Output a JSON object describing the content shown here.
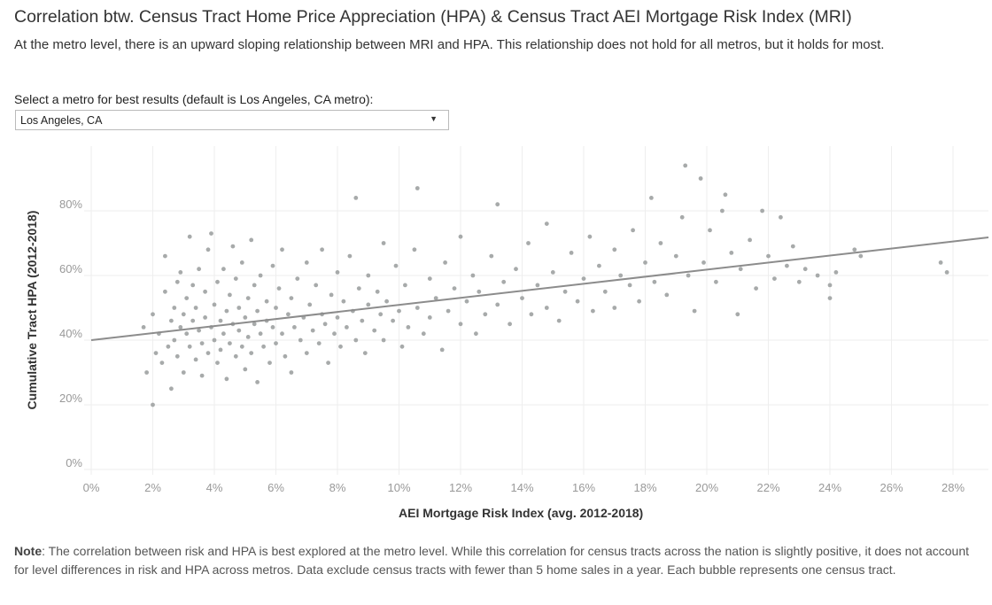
{
  "header": {
    "title": "Correlation btw. Census Tract Home Price Appreciation (HPA) & Census Tract AEI Mortgage Risk Index (MRI)",
    "subtitle": "At the metro level, there is an upward sloping relationship between MRI and HPA. This relationship does not hold for all metros, but it holds for most."
  },
  "filter": {
    "label": "Select a metro for best results (default is Los Angeles, CA metro):",
    "selected": "Los Angeles, CA",
    "icon": "caret-down-icon"
  },
  "note": {
    "label": "Note",
    "text": ": The correlation between risk and HPA is best explored at the metro level. While this correlation for census tracts across the nation is slightly positive, it does not account for level differences in risk and HPA across metros. Data exclude census tracts with fewer than 5 home sales in a year. Each bubble represents one census tract."
  },
  "chart_data": {
    "type": "scatter",
    "title": "Correlation btw. Census Tract Home Price Appreciation (HPA) & Census Tract AEI Mortgage Risk Index (MRI)",
    "xlabel": "AEI Mortgage Risk Index (avg. 2012-2018)",
    "ylabel": "Cumulative Tract HPA (2012-2018)",
    "xlim": [
      -0.3,
      29.2
    ],
    "ylim": [
      -3,
      100
    ],
    "x_ticks": [
      "0%",
      "2%",
      "4%",
      "6%",
      "8%",
      "10%",
      "12%",
      "14%",
      "16%",
      "18%",
      "20%",
      "22%",
      "24%",
      "26%",
      "28%"
    ],
    "x_tick_values": [
      0,
      2,
      4,
      6,
      8,
      10,
      12,
      14,
      16,
      18,
      20,
      22,
      24,
      26,
      28
    ],
    "y_ticks": [
      "0%",
      "20%",
      "40%",
      "60%",
      "80%"
    ],
    "y_tick_values": [
      0,
      20,
      40,
      60,
      80
    ],
    "grid": true,
    "point_color": "#a7aaaa",
    "trendline": {
      "color": "#8c8c8c",
      "intercept": 40,
      "slope": 1.09
    },
    "points": [
      [
        1.7,
        44
      ],
      [
        1.8,
        30
      ],
      [
        2.0,
        20
      ],
      [
        2.0,
        48
      ],
      [
        2.1,
        36
      ],
      [
        2.2,
        42
      ],
      [
        2.3,
        33
      ],
      [
        2.4,
        55
      ],
      [
        2.4,
        66
      ],
      [
        2.5,
        38
      ],
      [
        2.6,
        46
      ],
      [
        2.6,
        25
      ],
      [
        2.7,
        50
      ],
      [
        2.7,
        40
      ],
      [
        2.8,
        58
      ],
      [
        2.8,
        35
      ],
      [
        2.9,
        44
      ],
      [
        2.9,
        61
      ],
      [
        3.0,
        48
      ],
      [
        3.0,
        30
      ],
      [
        3.1,
        53
      ],
      [
        3.1,
        42
      ],
      [
        3.2,
        38
      ],
      [
        3.2,
        72
      ],
      [
        3.3,
        57
      ],
      [
        3.3,
        46
      ],
      [
        3.4,
        34
      ],
      [
        3.4,
        50
      ],
      [
        3.5,
        43
      ],
      [
        3.5,
        62
      ],
      [
        3.6,
        39
      ],
      [
        3.6,
        29
      ],
      [
        3.7,
        55
      ],
      [
        3.7,
        47
      ],
      [
        3.8,
        68
      ],
      [
        3.8,
        36
      ],
      [
        3.9,
        73
      ],
      [
        3.9,
        44
      ],
      [
        4.0,
        51
      ],
      [
        4.0,
        40
      ],
      [
        4.1,
        58
      ],
      [
        4.1,
        33
      ],
      [
        4.2,
        46
      ],
      [
        4.2,
        37
      ],
      [
        4.3,
        62
      ],
      [
        4.3,
        42
      ],
      [
        4.4,
        49
      ],
      [
        4.4,
        28
      ],
      [
        4.5,
        54
      ],
      [
        4.5,
        39
      ],
      [
        4.6,
        69
      ],
      [
        4.6,
        45
      ],
      [
        4.7,
        35
      ],
      [
        4.7,
        59
      ],
      [
        4.8,
        43
      ],
      [
        4.8,
        50
      ],
      [
        4.9,
        38
      ],
      [
        4.9,
        64
      ],
      [
        5.0,
        47
      ],
      [
        5.0,
        31
      ],
      [
        5.1,
        53
      ],
      [
        5.1,
        41
      ],
      [
        5.2,
        71
      ],
      [
        5.2,
        36
      ],
      [
        5.3,
        57
      ],
      [
        5.3,
        45
      ],
      [
        5.4,
        49
      ],
      [
        5.4,
        27
      ],
      [
        5.5,
        42
      ],
      [
        5.5,
        60
      ],
      [
        5.6,
        38
      ],
      [
        5.7,
        52
      ],
      [
        5.7,
        46
      ],
      [
        5.8,
        33
      ],
      [
        5.9,
        63
      ],
      [
        5.9,
        44
      ],
      [
        6.0,
        50
      ],
      [
        6.0,
        39
      ],
      [
        6.1,
        56
      ],
      [
        6.2,
        42
      ],
      [
        6.2,
        68
      ],
      [
        6.3,
        35
      ],
      [
        6.4,
        48
      ],
      [
        6.5,
        53
      ],
      [
        6.5,
        30
      ],
      [
        6.6,
        44
      ],
      [
        6.7,
        59
      ],
      [
        6.8,
        40
      ],
      [
        6.9,
        47
      ],
      [
        7.0,
        64
      ],
      [
        7.0,
        36
      ],
      [
        7.1,
        51
      ],
      [
        7.2,
        43
      ],
      [
        7.3,
        57
      ],
      [
        7.4,
        39
      ],
      [
        7.5,
        48
      ],
      [
        7.5,
        68
      ],
      [
        7.6,
        45
      ],
      [
        7.7,
        33
      ],
      [
        7.8,
        54
      ],
      [
        7.9,
        42
      ],
      [
        8.0,
        61
      ],
      [
        8.0,
        47
      ],
      [
        8.1,
        38
      ],
      [
        8.2,
        52
      ],
      [
        8.3,
        44
      ],
      [
        8.4,
        66
      ],
      [
        8.5,
        49
      ],
      [
        8.6,
        84
      ],
      [
        8.6,
        40
      ],
      [
        8.7,
        56
      ],
      [
        8.8,
        46
      ],
      [
        8.9,
        36
      ],
      [
        9.0,
        60
      ],
      [
        9.0,
        51
      ],
      [
        9.2,
        43
      ],
      [
        9.3,
        55
      ],
      [
        9.4,
        48
      ],
      [
        9.5,
        70
      ],
      [
        9.5,
        40
      ],
      [
        9.6,
        52
      ],
      [
        9.8,
        46
      ],
      [
        9.9,
        63
      ],
      [
        10.0,
        49
      ],
      [
        10.1,
        38
      ],
      [
        10.2,
        57
      ],
      [
        10.3,
        44
      ],
      [
        10.5,
        68
      ],
      [
        10.6,
        87
      ],
      [
        10.6,
        50
      ],
      [
        10.8,
        42
      ],
      [
        11.0,
        59
      ],
      [
        11.0,
        47
      ],
      [
        11.2,
        53
      ],
      [
        11.4,
        37
      ],
      [
        11.5,
        64
      ],
      [
        11.6,
        49
      ],
      [
        11.8,
        56
      ],
      [
        12.0,
        45
      ],
      [
        12.0,
        72
      ],
      [
        12.2,
        52
      ],
      [
        12.4,
        60
      ],
      [
        12.5,
        42
      ],
      [
        12.6,
        55
      ],
      [
        12.8,
        48
      ],
      [
        13.0,
        66
      ],
      [
        13.2,
        82
      ],
      [
        13.2,
        51
      ],
      [
        13.4,
        58
      ],
      [
        13.6,
        45
      ],
      [
        13.8,
        62
      ],
      [
        14.0,
        53
      ],
      [
        14.2,
        70
      ],
      [
        14.3,
        48
      ],
      [
        14.5,
        57
      ],
      [
        14.8,
        76
      ],
      [
        14.8,
        50
      ],
      [
        15.0,
        61
      ],
      [
        15.2,
        46
      ],
      [
        15.4,
        55
      ],
      [
        15.6,
        67
      ],
      [
        15.8,
        52
      ],
      [
        16.0,
        59
      ],
      [
        16.2,
        72
      ],
      [
        16.3,
        49
      ],
      [
        16.5,
        63
      ],
      [
        16.7,
        55
      ],
      [
        17.0,
        68
      ],
      [
        17.0,
        50
      ],
      [
        17.2,
        60
      ],
      [
        17.5,
        57
      ],
      [
        17.6,
        74
      ],
      [
        17.8,
        52
      ],
      [
        18.0,
        64
      ],
      [
        18.2,
        84
      ],
      [
        18.3,
        58
      ],
      [
        18.5,
        70
      ],
      [
        18.7,
        54
      ],
      [
        19.0,
        66
      ],
      [
        19.2,
        78
      ],
      [
        19.3,
        94
      ],
      [
        19.4,
        60
      ],
      [
        19.6,
        49
      ],
      [
        19.8,
        90
      ],
      [
        19.9,
        64
      ],
      [
        20.1,
        74
      ],
      [
        20.3,
        58
      ],
      [
        20.5,
        80
      ],
      [
        20.6,
        85
      ],
      [
        20.8,
        67
      ],
      [
        21.0,
        48
      ],
      [
        21.1,
        62
      ],
      [
        21.4,
        71
      ],
      [
        21.6,
        56
      ],
      [
        21.8,
        80
      ],
      [
        22.0,
        66
      ],
      [
        22.2,
        59
      ],
      [
        22.4,
        78
      ],
      [
        22.6,
        63
      ],
      [
        22.8,
        69
      ],
      [
        23.0,
        58
      ],
      [
        23.2,
        62
      ],
      [
        23.6,
        60
      ],
      [
        24.0,
        57
      ],
      [
        24.0,
        53
      ],
      [
        24.2,
        61
      ],
      [
        24.8,
        68
      ],
      [
        25.0,
        66
      ],
      [
        27.6,
        64
      ],
      [
        27.8,
        61
      ]
    ]
  }
}
